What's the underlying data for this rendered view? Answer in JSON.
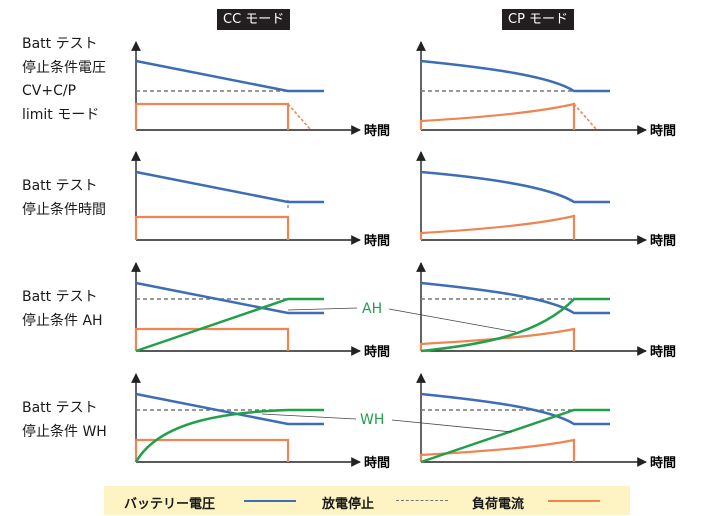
{
  "headers": {
    "cc": "CC モード",
    "cp": "CP モード"
  },
  "rows": [
    {
      "lines": [
        "Batt テスト",
        "停止条件電圧",
        "CV+C/P",
        "limit モード"
      ]
    },
    {
      "lines": [
        "Batt テスト",
        "停止条件時間"
      ]
    },
    {
      "lines": [
        "Batt テスト",
        "停止条件 AH"
      ]
    },
    {
      "lines": [
        "Batt テスト",
        "停止条件 WH"
      ]
    }
  ],
  "axis_label": "時間",
  "callouts": {
    "ah": "AH",
    "wh": "WH"
  },
  "legend": {
    "voltage": "バッテリー電圧",
    "stop": "放電停止",
    "current": "負荷電流"
  },
  "colors": {
    "voltage": "#3d6db5",
    "current": "#ee8552",
    "capacity": "#21a04a",
    "stop": "#777777",
    "axis": "#222222",
    "legend_bg": "#fdf3c3"
  }
}
